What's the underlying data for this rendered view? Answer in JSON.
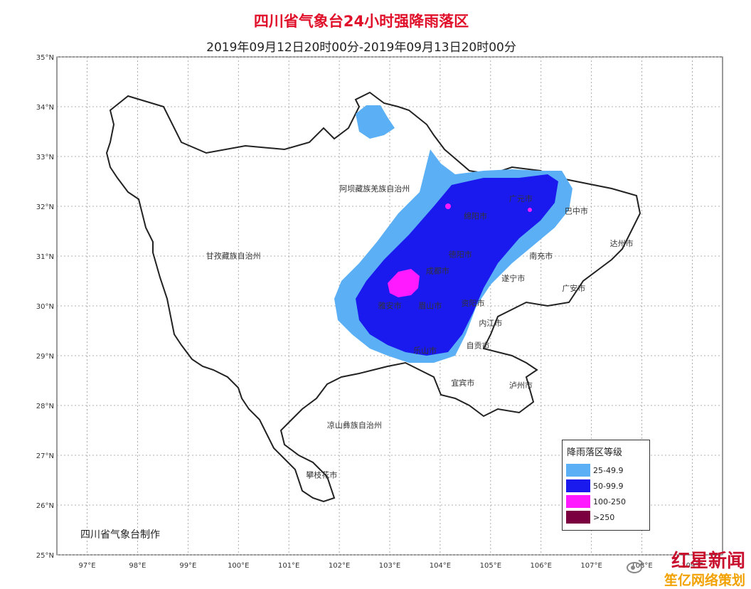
{
  "header": {
    "title": "四川省气象台24小时强降雨落区",
    "subtitle": "2019年09月12日20时00分-2019年09月13日20时00分"
  },
  "axes": {
    "lat_labels": [
      "35°N",
      "34°N",
      "33°N",
      "32°N",
      "31°N",
      "30°N",
      "29°N",
      "28°N",
      "27°N",
      "26°N",
      "25°N"
    ],
    "lon_labels": [
      "97°E",
      "98°E",
      "99°E",
      "100°E",
      "101°E",
      "102°E",
      "103°E",
      "104°E",
      "105°E",
      "106°E",
      "107°E",
      "108°E",
      "109°E"
    ],
    "lat_range": [
      25,
      35
    ],
    "lon_range": [
      96.4,
      109.6
    ]
  },
  "cities": [
    {
      "name": "阿坝藏族羌族自治州",
      "lon": 102.7,
      "lat": 32.3
    },
    {
      "name": "甘孜藏族自治州",
      "lon": 99.9,
      "lat": 30.95
    },
    {
      "name": "绵阳市",
      "lon": 104.7,
      "lat": 31.75
    },
    {
      "name": "广元市",
      "lon": 105.6,
      "lat": 32.1
    },
    {
      "name": "巴中市",
      "lon": 106.7,
      "lat": 31.85
    },
    {
      "name": "达州市",
      "lon": 107.6,
      "lat": 31.2
    },
    {
      "name": "南充市",
      "lon": 106.0,
      "lat": 30.95
    },
    {
      "name": "德阳市",
      "lon": 104.4,
      "lat": 30.98
    },
    {
      "name": "成都市",
      "lon": 103.95,
      "lat": 30.65
    },
    {
      "name": "遂宁市",
      "lon": 105.45,
      "lat": 30.5
    },
    {
      "name": "广安市",
      "lon": 106.65,
      "lat": 30.3
    },
    {
      "name": "资阳市",
      "lon": 104.65,
      "lat": 30.0
    },
    {
      "name": "雅安市",
      "lon": 103.0,
      "lat": 29.95
    },
    {
      "name": "眉山市",
      "lon": 103.8,
      "lat": 29.95
    },
    {
      "name": "内江市",
      "lon": 105.0,
      "lat": 29.6
    },
    {
      "name": "自贡市",
      "lon": 104.75,
      "lat": 29.15
    },
    {
      "name": "乐山市",
      "lon": 103.7,
      "lat": 29.05
    },
    {
      "name": "宜宾市",
      "lon": 104.45,
      "lat": 28.4
    },
    {
      "name": "泸州市",
      "lon": 105.6,
      "lat": 28.35
    },
    {
      "name": "凉山彝族自治州",
      "lon": 102.3,
      "lat": 27.55
    },
    {
      "name": "攀枝花市",
      "lon": 101.65,
      "lat": 26.55
    }
  ],
  "legend": {
    "title": "降雨落区等级",
    "items": [
      {
        "label": "25-49.9",
        "color": "#5aaff5"
      },
      {
        "label": "50-99.9",
        "color": "#1a1aee"
      },
      {
        "label": "100-250",
        "color": "#ff1aff"
      },
      {
        "label": ">250",
        "color": "#7a0040"
      }
    ]
  },
  "credit": "四川省气象台制作",
  "watermark": {
    "line1": "红星新闻",
    "line2": "笙亿网络策划"
  },
  "colors": {
    "light_blue": "#5aaff5",
    "blue": "#1a1aee",
    "magenta": "#ff1aff",
    "grid": "#888888",
    "title": "#e0102a"
  }
}
